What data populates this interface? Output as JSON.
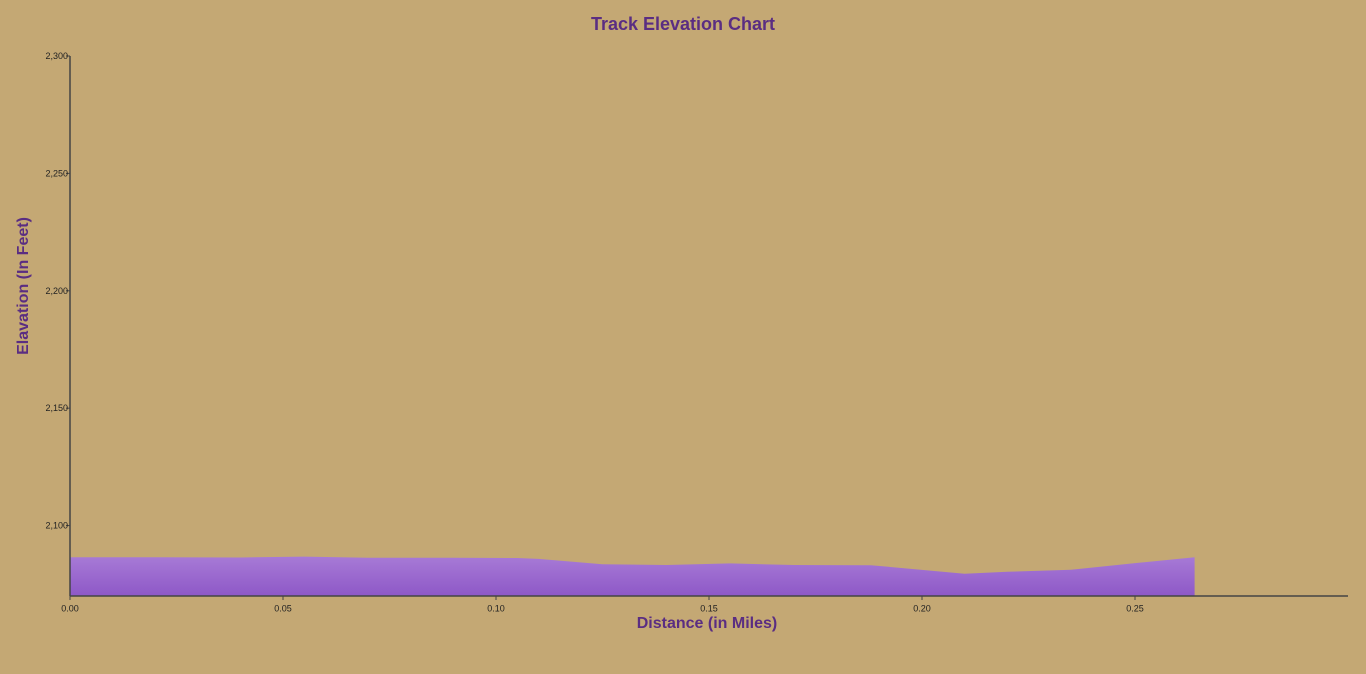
{
  "chart_data": {
    "type": "area",
    "title": "Track Elevation Chart",
    "xlabel": "Distance (in Miles)",
    "ylabel": "Elavation (In Feet)",
    "xlim": [
      0,
      0.3
    ],
    "ylim": [
      2070,
      2300
    ],
    "x_ticks": [
      "0.00",
      "0.05",
      "0.10",
      "0.15",
      "0.20",
      "0.25"
    ],
    "x_tick_values": [
      0,
      0.05,
      0.1,
      0.15,
      0.2,
      0.25
    ],
    "y_ticks": [
      "2,100",
      "2,150",
      "2,200",
      "2,250",
      "2,300"
    ],
    "y_tick_values": [
      2100,
      2150,
      2200,
      2250,
      2300
    ],
    "grid": false,
    "legend": "none",
    "series": [
      {
        "x": [
          0.0,
          0.02,
          0.04,
          0.055,
          0.07,
          0.09,
          0.105,
          0.11,
          0.125,
          0.14,
          0.155,
          0.17,
          0.188,
          0.21,
          0.22,
          0.235,
          0.25,
          0.264
        ],
        "values": [
          2086.5,
          2086.5,
          2086.4,
          2086.8,
          2086.3,
          2086.3,
          2086.2,
          2085.8,
          2083.5,
          2083.2,
          2083.9,
          2083.2,
          2083.1,
          2079.5,
          2080.3,
          2081.2,
          2084,
          2086.5
        ]
      }
    ],
    "colors": {
      "background": "#c4a874",
      "area_top": "#a77ad6",
      "area_bottom": "#8e58c7",
      "title": "#5a2d82",
      "axis": "#444444"
    }
  }
}
